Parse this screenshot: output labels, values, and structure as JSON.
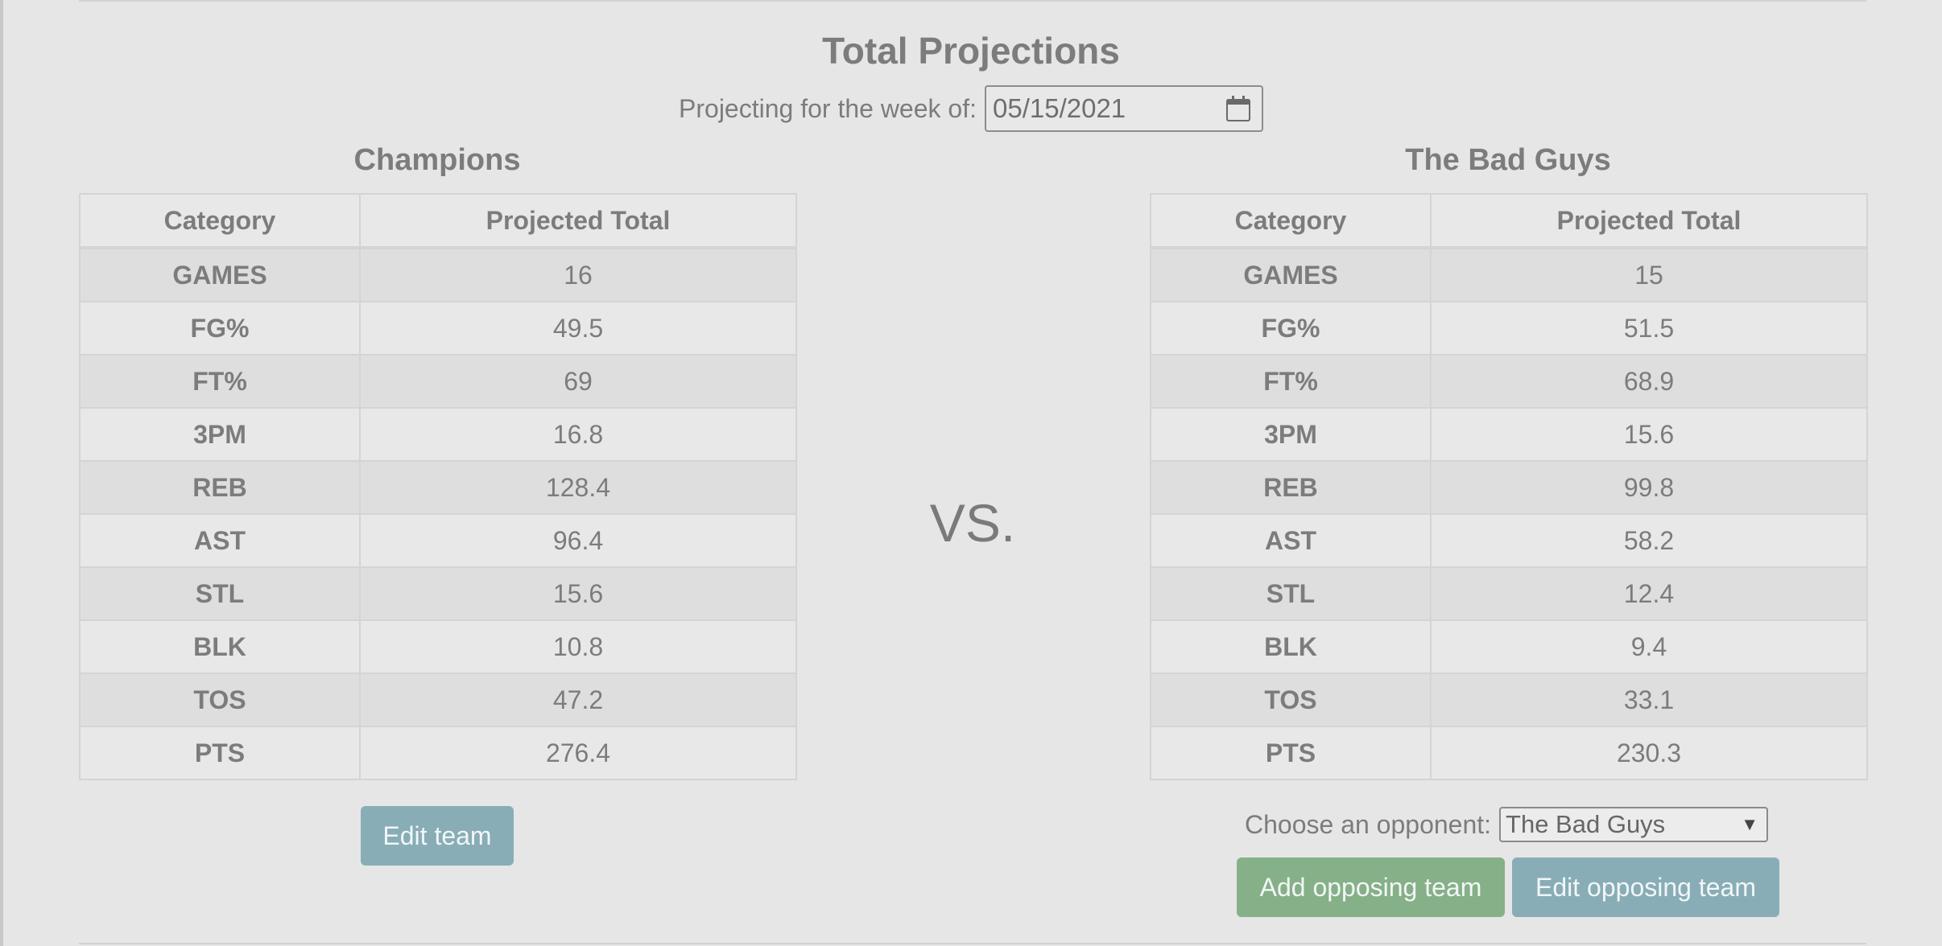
{
  "page": {
    "title": "Total Projections",
    "week_label": "Projecting for the week of:",
    "week_date": "05/15/2021",
    "vs_label": "VS."
  },
  "table_headers": {
    "category": "Category",
    "projected_total": "Projected Total"
  },
  "team": {
    "name": "Champions",
    "rows": [
      {
        "category": "GAMES",
        "value": "16"
      },
      {
        "category": "FG%",
        "value": "49.5"
      },
      {
        "category": "FT%",
        "value": "69"
      },
      {
        "category": "3PM",
        "value": "16.8"
      },
      {
        "category": "REB",
        "value": "128.4"
      },
      {
        "category": "AST",
        "value": "96.4"
      },
      {
        "category": "STL",
        "value": "15.6"
      },
      {
        "category": "BLK",
        "value": "10.8"
      },
      {
        "category": "TOS",
        "value": "47.2"
      },
      {
        "category": "PTS",
        "value": "276.4"
      }
    ],
    "edit_label": "Edit team"
  },
  "opponent": {
    "name": "The Bad Guys",
    "rows": [
      {
        "category": "GAMES",
        "value": "15"
      },
      {
        "category": "FG%",
        "value": "51.5"
      },
      {
        "category": "FT%",
        "value": "68.9"
      },
      {
        "category": "3PM",
        "value": "15.6"
      },
      {
        "category": "REB",
        "value": "99.8"
      },
      {
        "category": "AST",
        "value": "58.2"
      },
      {
        "category": "STL",
        "value": "12.4"
      },
      {
        "category": "BLK",
        "value": "9.4"
      },
      {
        "category": "TOS",
        "value": "33.1"
      },
      {
        "category": "PTS",
        "value": "230.3"
      }
    ],
    "choose_label": "Choose an opponent:",
    "selected": "The Bad Guys",
    "add_label": "Add opposing team",
    "edit_label": "Edit opposing team"
  },
  "colors": {
    "background": "#e6e6e6",
    "teal_button": "#88adb7",
    "green_button": "#86b087",
    "text": "#7a7a7a"
  },
  "icons": {
    "date_picker": "calendar-icon",
    "select": "chevron-down-icon"
  }
}
